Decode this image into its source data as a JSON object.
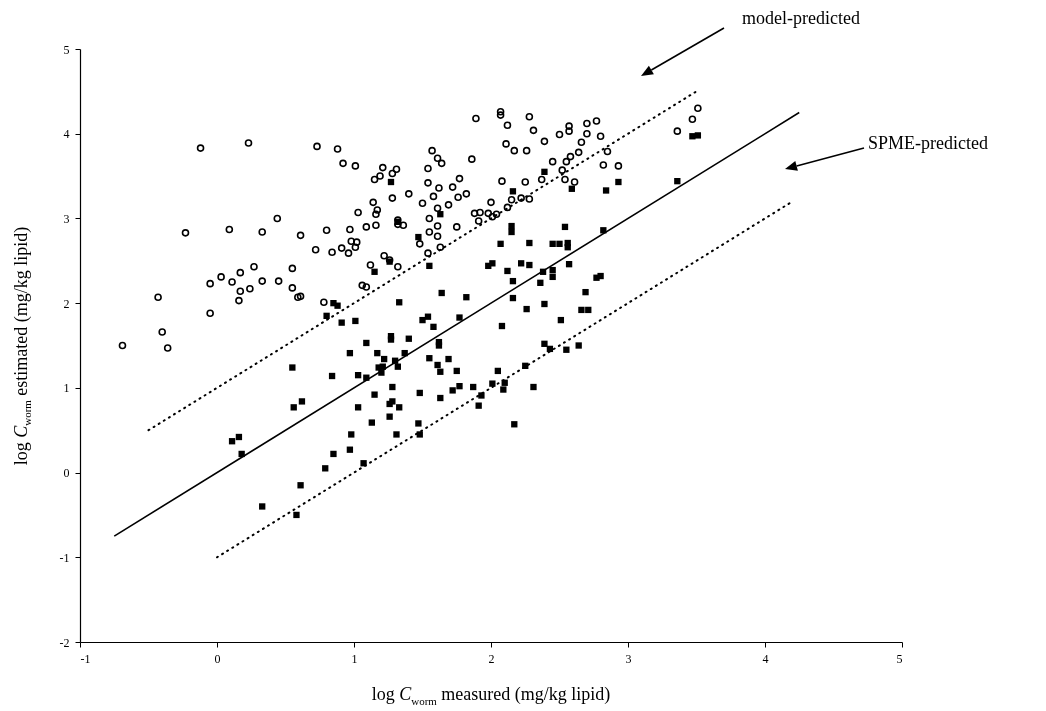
{
  "chart_data": {
    "type": "scatter",
    "xlabel": "log C$_{worm}$ measured (mg/kg lipid)",
    "ylabel": "log C$_{worm}$ estimated (mg/kg lipid)",
    "xlim": [
      -1,
      5
    ],
    "xticks": [
      -1,
      0,
      1,
      2,
      3,
      4,
      5
    ],
    "ylim": [
      -2,
      5
    ],
    "yticks": [
      -2,
      -1,
      0,
      1,
      2,
      3,
      4,
      5
    ],
    "grid": false,
    "annotations": [
      "model-predicted",
      "SPME-predicted"
    ],
    "series": [
      {
        "type": "scatter",
        "marker": "circle",
        "color": "#000000",
        "x": [
          -0.69,
          -0.43,
          -0.4,
          -0.36,
          -0.23,
          -0.12,
          -0.05,
          -0.05,
          0.03,
          0.09,
          0.11,
          0.17,
          0.17,
          0.16,
          0.23,
          0.24,
          0.27,
          0.33,
          0.33,
          0.44,
          0.45,
          0.55,
          0.55,
          0.59,
          0.61,
          0.61,
          0.73,
          0.72,
          0.78,
          0.8,
          0.84,
          0.88,
          0.91,
          0.92,
          0.96,
          0.97,
          0.98,
          1.01,
          1.01,
          1.02,
          1.03,
          1.06,
          1.09,
          1.09,
          1.12,
          1.14,
          1.15,
          1.16,
          1.16,
          1.19,
          1.21,
          1.22,
          1.26,
          1.28,
          1.31,
          1.28,
          1.4,
          1.17,
          1.32,
          1.36,
          1.32,
          1.32,
          1.48,
          1.54,
          1.5,
          1.54,
          1.54,
          1.55,
          1.55,
          1.57,
          1.58,
          1.61,
          1.61,
          1.61,
          1.61,
          1.62,
          1.63,
          1.64,
          1.69,
          1.72,
          1.75,
          1.76,
          1.77,
          1.82,
          1.86,
          1.88,
          1.89,
          1.91,
          1.92,
          1.98,
          2.0,
          2.01,
          2.04,
          2.07,
          2.07,
          2.08,
          2.11,
          2.12,
          2.12,
          2.15,
          2.17,
          2.22,
          2.25,
          2.26,
          2.28,
          2.28,
          2.31,
          2.37,
          2.39,
          2.45,
          2.5,
          2.52,
          2.54,
          2.55,
          2.57,
          2.57,
          2.58,
          2.61,
          2.64,
          2.66,
          2.7,
          2.7,
          2.77,
          2.8,
          2.82,
          2.85,
          2.93,
          3.36,
          3.47,
          3.51
        ],
        "values": [
          1.5,
          2.07,
          1.66,
          1.47,
          2.83,
          3.83,
          2.23,
          1.88,
          2.31,
          2.87,
          2.25,
          2.36,
          2.14,
          2.03,
          3.89,
          2.17,
          2.43,
          2.84,
          2.26,
          3.0,
          2.26,
          2.41,
          2.18,
          2.07,
          2.08,
          2.8,
          3.85,
          2.63,
          2.01,
          2.86,
          2.6,
          3.82,
          2.65,
          3.65,
          2.59,
          2.87,
          2.73,
          3.62,
          2.66,
          2.72,
          3.07,
          2.21,
          2.19,
          2.9,
          2.45,
          3.19,
          3.46,
          3.05,
          2.92,
          3.5,
          3.6,
          2.56,
          2.51,
          3.53,
          3.58,
          3.24,
          3.29,
          3.1,
          2.93,
          2.92,
          2.98,
          2.43,
          2.7,
          2.59,
          3.18,
          3.59,
          3.42,
          3.0,
          2.84,
          3.8,
          3.26,
          3.71,
          2.79,
          3.12,
          2.91,
          3.36,
          2.66,
          3.65,
          3.16,
          3.37,
          2.9,
          3.25,
          3.47,
          3.29,
          3.7,
          3.06,
          4.18,
          2.97,
          3.07,
          3.06,
          3.19,
          3.02,
          3.05,
          4.26,
          4.22,
          3.44,
          3.88,
          4.1,
          3.13,
          3.22,
          3.8,
          3.24,
          3.43,
          3.8,
          4.2,
          3.23,
          4.04,
          3.46,
          3.91,
          3.67,
          3.99,
          3.57,
          3.46,
          3.67,
          4.09,
          4.03,
          3.73,
          3.43,
          3.78,
          3.9,
          4.12,
          4.0,
          4.15,
          3.97,
          3.63,
          3.79,
          3.62,
          4.03,
          4.17,
          4.3
        ]
      },
      {
        "type": "scatter",
        "marker": "square",
        "color": "#000000",
        "x": [
          0.61,
          0.33,
          0.58,
          0.79,
          0.11,
          0.16,
          0.18,
          0.55,
          0.56,
          0.62,
          0.8,
          0.85,
          0.88,
          0.91,
          1.01,
          1.15,
          1.09,
          0.97,
          1.17,
          0.84,
          1.03,
          1.09,
          1.18,
          1.15,
          1.03,
          1.13,
          0.98,
          0.85,
          0.97,
          1.07,
          1.27,
          1.32,
          1.63,
          1.47,
          1.26,
          1.55,
          2.16,
          2.15,
          2.15,
          2.07,
          2.28,
          2.45,
          2.5,
          2.56,
          2.56,
          2.54,
          2.39,
          2.59,
          2.84,
          2.93,
          2.82,
          2.01,
          1.98,
          2.22,
          2.28,
          2.12,
          2.38,
          2.45,
          2.45,
          2.57,
          2.16,
          2.36,
          2.77,
          2.8,
          2.69,
          1.64,
          1.82,
          1.33,
          2.16,
          2.26,
          2.39,
          2.66,
          2.71,
          2.51,
          2.08,
          1.5,
          1.54,
          1.58,
          1.77,
          1.27,
          1.27,
          1.4,
          1.62,
          1.62,
          1.37,
          1.22,
          1.3,
          1.21,
          1.32,
          1.55,
          1.69,
          1.61,
          1.63,
          1.75,
          2.05,
          2.25,
          2.39,
          2.43,
          2.55,
          2.64,
          1.2,
          1.28,
          1.48,
          1.63,
          1.72,
          1.77,
          1.87,
          1.93,
          1.91,
          2.01,
          2.1,
          2.09,
          2.31,
          1.28,
          1.26,
          1.33,
          1.26,
          1.47,
          1.31,
          1.48,
          2.17,
          3.47,
          3.51,
          3.36
        ],
        "values": [
          -0.15,
          -0.4,
          -0.5,
          0.05,
          0.37,
          0.42,
          0.22,
          1.24,
          0.77,
          0.84,
          1.85,
          2.0,
          1.97,
          1.77,
          1.79,
          2.37,
          1.53,
          1.41,
          1.41,
          1.14,
          1.15,
          1.12,
          1.24,
          0.92,
          0.77,
          0.59,
          0.45,
          0.22,
          0.27,
          0.11,
          3.43,
          2.96,
          3.05,
          2.78,
          2.49,
          2.44,
          3.32,
          2.91,
          2.84,
          2.7,
          2.71,
          2.7,
          2.7,
          2.71,
          2.66,
          2.9,
          3.55,
          3.35,
          3.33,
          3.43,
          2.86,
          2.47,
          2.44,
          2.47,
          2.45,
          2.38,
          2.37,
          2.39,
          2.31,
          2.46,
          2.26,
          2.24,
          2.3,
          2.32,
          2.13,
          2.12,
          2.07,
          2.01,
          2.06,
          1.93,
          1.99,
          1.92,
          1.92,
          1.8,
          1.73,
          1.8,
          1.84,
          1.72,
          1.83,
          1.61,
          1.57,
          1.58,
          1.54,
          1.5,
          1.41,
          1.34,
          1.32,
          1.25,
          1.25,
          1.35,
          1.34,
          1.27,
          1.19,
          1.2,
          1.2,
          1.26,
          1.52,
          1.46,
          1.45,
          1.5,
          1.18,
          1.01,
          0.94,
          0.88,
          0.97,
          1.02,
          1.01,
          0.91,
          0.79,
          1.05,
          1.06,
          0.98,
          1.01,
          0.84,
          0.81,
          0.77,
          0.66,
          0.58,
          0.45,
          0.45,
          0.57,
          3.97,
          3.98,
          3.44
        ]
      },
      {
        "type": "line",
        "line_style": "solid",
        "color": "#000000",
        "x": [
          -0.75,
          4.25
        ],
        "values": [
          -0.75,
          4.25
        ]
      },
      {
        "type": "line",
        "line_style": "dotted",
        "color": "#000000",
        "x": [
          -0.5,
          3.5
        ],
        "values": [
          0.5,
          4.5
        ]
      },
      {
        "type": "line",
        "line_style": "dotted",
        "color": "#000000",
        "x": [
          0,
          4.2
        ],
        "values": [
          -1,
          3.2
        ]
      }
    ]
  }
}
